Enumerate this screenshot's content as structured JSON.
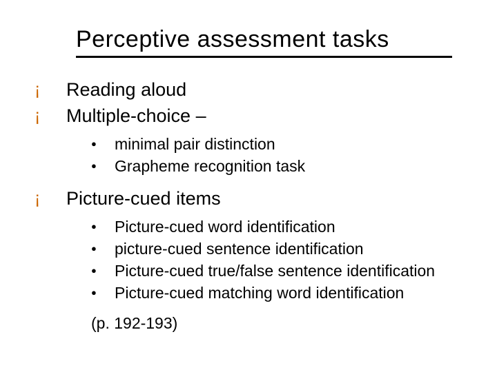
{
  "title": "Perceptive assessment tasks",
  "colors": {
    "circle_bullet": "#cc6600",
    "dot_bullet": "#000000",
    "text": "#000000",
    "underline": "#000000",
    "background": "#ffffff"
  },
  "bullets": {
    "level1_glyph": "¡",
    "level2_glyph": "●"
  },
  "items": [
    {
      "label": "Reading aloud",
      "children": []
    },
    {
      "label": "Multiple-choice –",
      "children": [
        {
          "label": "minimal pair distinction"
        },
        {
          "label": "Grapheme recognition task"
        }
      ]
    },
    {
      "label": "Picture-cued items",
      "children": [
        {
          "label": "Picture-cued word identification"
        },
        {
          "label": "picture-cued sentence identification"
        },
        {
          "label": "Picture-cued true/false sentence identification"
        },
        {
          "label": "Picture-cued matching word identification"
        }
      ]
    }
  ],
  "page_ref": "(p. 192-193)"
}
